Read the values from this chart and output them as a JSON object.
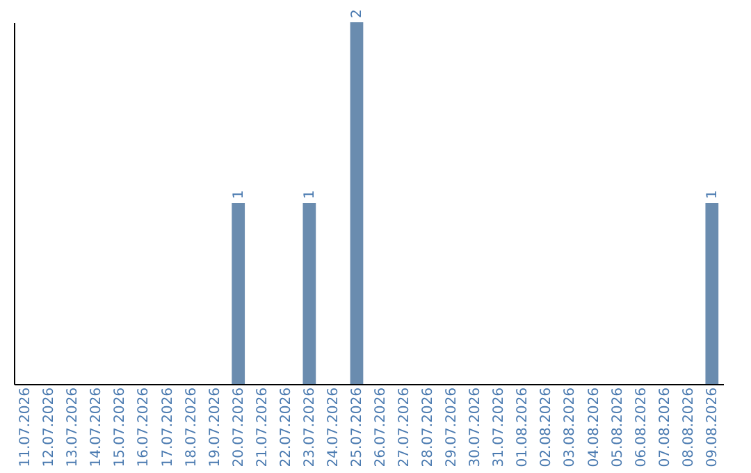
{
  "chart_data": {
    "type": "bar",
    "categories": [
      "11.07.2026",
      "12.07.2026",
      "13.07.2026",
      "14.07.2026",
      "15.07.2026",
      "16.07.2026",
      "17.07.2026",
      "18.07.2026",
      "19.07.2026",
      "20.07.2026",
      "21.07.2026",
      "22.07.2026",
      "23.07.2026",
      "24.07.2026",
      "25.07.2026",
      "26.07.2026",
      "27.07.2026",
      "28.07.2026",
      "29.07.2026",
      "30.07.2026",
      "31.07.2026",
      "01.08.2026",
      "02.08.2026",
      "03.08.2026",
      "04.08.2026",
      "05.08.2026",
      "06.08.2026",
      "07.08.2026",
      "08.08.2026",
      "09.08.2026"
    ],
    "values": [
      0,
      0,
      0,
      0,
      0,
      0,
      0,
      0,
      0,
      1,
      0,
      0,
      1,
      0,
      2,
      0,
      0,
      0,
      0,
      0,
      0,
      0,
      0,
      0,
      0,
      0,
      0,
      0,
      0,
      1
    ],
    "value_labels": [
      null,
      null,
      null,
      null,
      null,
      null,
      null,
      null,
      null,
      "1",
      null,
      null,
      "1",
      null,
      "2",
      null,
      null,
      null,
      null,
      null,
      null,
      null,
      null,
      null,
      null,
      null,
      null,
      null,
      null,
      "1"
    ],
    "color": "#6a8caf",
    "ylim": [
      0,
      2
    ],
    "tick_labels": "x",
    "grid": false
  }
}
